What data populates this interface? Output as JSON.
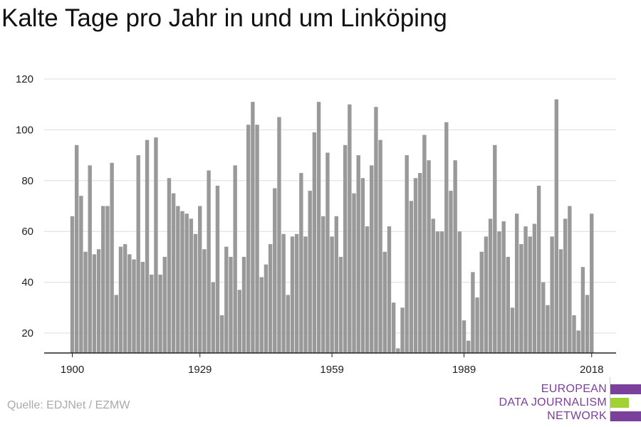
{
  "title": "Kalte Tage pro Jahr in und um Linköping",
  "source": "Quelle: EDJNet / EZMW",
  "logo": {
    "lines": [
      "EUROPEAN",
      "DATA JOURNALISM",
      "NETWORK"
    ],
    "colors": {
      "text": "#7b3f9c",
      "purple": "#7b3f9c",
      "green": "#a0d233"
    }
  },
  "chart_data": {
    "type": "bar",
    "title": "Kalte Tage pro Jahr in und um Linköping",
    "xlabel": "",
    "ylabel": "",
    "bar_color": "#999999",
    "grid": true,
    "ylim": [
      12,
      120
    ],
    "yticks": [
      20,
      40,
      60,
      80,
      100,
      120
    ],
    "xticks": [
      1900,
      1929,
      1959,
      1989,
      2018
    ],
    "x_start": 1900,
    "values": [
      66,
      94,
      74,
      52,
      86,
      51,
      53,
      70,
      70,
      87,
      35,
      54,
      55,
      51,
      49,
      90,
      48,
      96,
      43,
      97,
      43,
      50,
      81,
      75,
      70,
      68,
      67,
      65,
      59,
      70,
      53,
      84,
      40,
      78,
      27,
      54,
      50,
      86,
      37,
      50,
      102,
      111,
      102,
      42,
      47,
      55,
      77,
      105,
      59,
      35,
      58,
      59,
      83,
      58,
      76,
      99,
      111,
      66,
      91,
      58,
      66,
      50,
      94,
      110,
      75,
      90,
      81,
      62,
      86,
      109,
      96,
      52,
      62,
      32,
      14,
      30,
      90,
      72,
      81,
      83,
      98,
      88,
      65,
      60,
      60,
      103,
      76,
      88,
      60,
      25,
      17,
      44,
      34,
      52,
      58,
      65,
      94,
      60,
      64,
      50,
      30,
      67,
      55,
      62,
      58,
      63,
      78,
      40,
      31,
      58,
      112,
      53,
      65,
      70,
      27,
      21,
      46,
      35,
      67
    ]
  }
}
